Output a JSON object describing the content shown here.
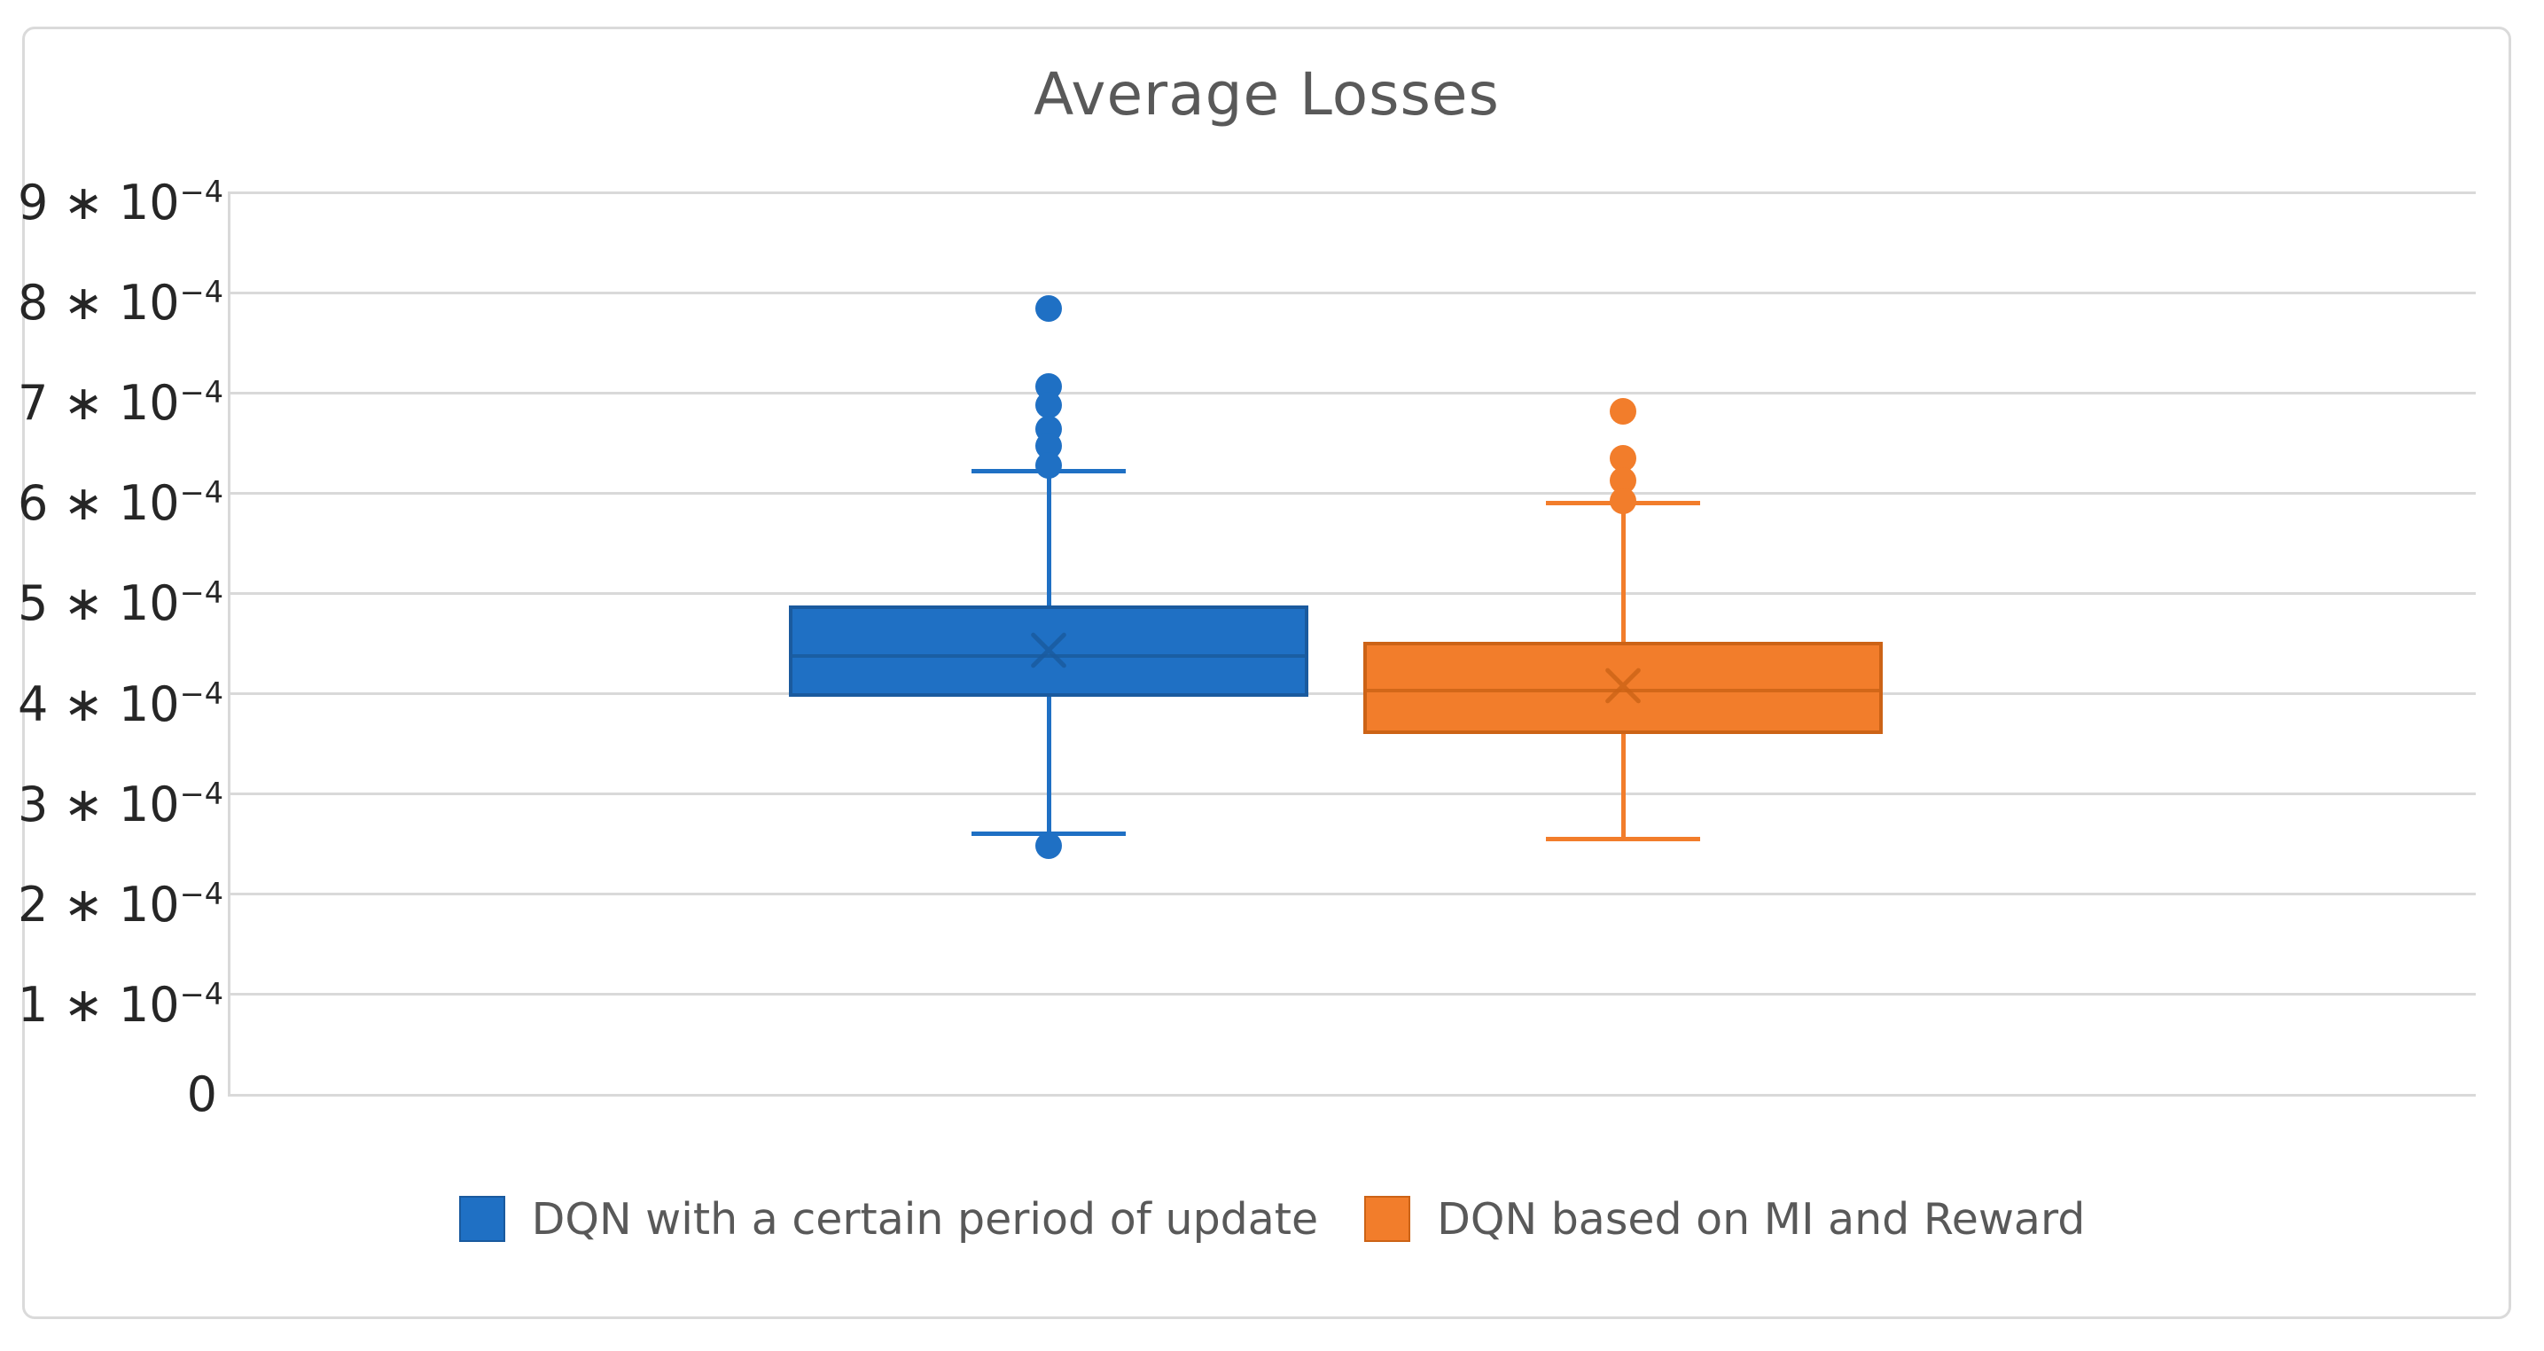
{
  "chart_data": {
    "type": "boxplot",
    "title": "Average Losses",
    "value_scale": "values are in units of 10^-4",
    "y_axis": {
      "min": 0,
      "max": 9,
      "gridlines": true,
      "ticks": [
        {
          "value": 9,
          "text": "9 ∗ 10",
          "sup": "−4"
        },
        {
          "value": 8,
          "text": "8 ∗ 10",
          "sup": "−4"
        },
        {
          "value": 7,
          "text": "7 ∗ 10",
          "sup": "−4"
        },
        {
          "value": 6,
          "text": "6 ∗ 10",
          "sup": "−4"
        },
        {
          "value": 5,
          "text": "5 ∗ 10",
          "sup": "−4"
        },
        {
          "value": 4,
          "text": "4 ∗ 10",
          "sup": "−4"
        },
        {
          "value": 3,
          "text": "3 ∗ 10",
          "sup": "−4"
        },
        {
          "value": 2,
          "text": "2 ∗ 10",
          "sup": "−4"
        },
        {
          "value": 1,
          "text": "1 ∗ 10",
          "sup": "−4"
        },
        {
          "value": 0,
          "text": "0",
          "sup": ""
        }
      ]
    },
    "legend_position": "bottom",
    "series": [
      {
        "name": "DQN with a certain period of update",
        "color": "#1F70C4",
        "line_color": "#1A5A9E",
        "whisker_low": 2.6,
        "q1": 3.97,
        "median": 4.38,
        "mean": 4.43,
        "q3": 4.88,
        "whisker_high": 6.22,
        "outliers_high": [
          7.84,
          7.06,
          6.88,
          6.64,
          6.47,
          6.28
        ],
        "outliers_low": [
          2.48
        ]
      },
      {
        "name": "DQN based on MI and Reward",
        "color": "#F27D2B",
        "line_color": "#CC6316",
        "whisker_low": 2.55,
        "q1": 3.6,
        "median": 4.03,
        "mean": 4.08,
        "q3": 4.52,
        "whisker_high": 5.9,
        "outliers_high": [
          6.82,
          6.35,
          6.13,
          5.92
        ],
        "outliers_low": []
      }
    ]
  }
}
